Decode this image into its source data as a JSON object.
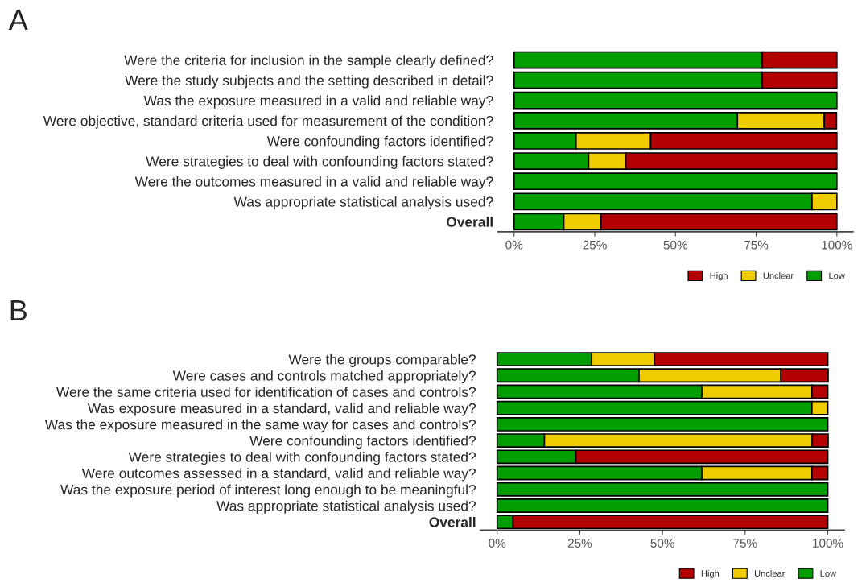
{
  "chart_data": [
    {
      "type": "bar",
      "title": "A",
      "orientation": "horizontal",
      "stacked": true,
      "categories": [
        "Were the criteria for inclusion in the sample clearly defined?",
        "Were the study subjects and the setting described in detail?",
        "Was the exposure measured in a valid and reliable way?",
        "Were objective, standard criteria used for measurement of the condition?",
        "Were confounding factors identified?",
        "Were strategies to deal with confounding factors stated?",
        "Were the outcomes measured in a valid and reliable way?",
        "Was appropriate statistical analysis used?",
        "Overall"
      ],
      "series": [
        {
          "name": "Low",
          "color": "#009e00",
          "values": [
            76.9,
            76.9,
            100,
            69.2,
            19.2,
            23.1,
            100,
            92.3,
            15.4
          ]
        },
        {
          "name": "Unclear",
          "color": "#eecc00",
          "values": [
            null,
            null,
            null,
            26.9,
            23.1,
            11.5,
            null,
            7.7,
            11.5
          ]
        },
        {
          "name": "High",
          "color": "#b30000",
          "values": [
            23.1,
            23.1,
            null,
            3.8,
            57.7,
            65.4,
            null,
            null,
            73.1
          ]
        }
      ],
      "xlim": [
        -5,
        105
      ],
      "xticks": [
        {
          "value": 0,
          "label": "0%"
        },
        {
          "value": 25,
          "label": "25%"
        },
        {
          "value": 50,
          "label": "50%"
        },
        {
          "value": 75,
          "label": "75%"
        },
        {
          "value": 100,
          "label": "100%"
        }
      ],
      "grid": false,
      "legend": "bottom"
    },
    {
      "type": "bar",
      "title": "B",
      "orientation": "horizontal",
      "stacked": true,
      "categories": [
        "Were the groups comparable?",
        "Were cases and controls matched appropriately?",
        "Were the same criteria used for identification of cases and controls?",
        "Was exposure measured in a standard, valid and reliable way?",
        "Was the exposure measured in the same way for cases and controls?",
        "Were confounding factors identified?",
        "Were strategies to deal with confounding factors stated?",
        "Were outcomes assessed in a standard, valid and reliable way?",
        "Was the exposure period of interest long enough to be meaningful?",
        "Was appropriate statistical analysis used?",
        "Overall"
      ],
      "series": [
        {
          "name": "Low",
          "color": "#009e00",
          "values": [
            28.6,
            42.9,
            61.9,
            95.2,
            100,
            14.3,
            23.8,
            61.9,
            100,
            100,
            4.8
          ]
        },
        {
          "name": "Unclear",
          "color": "#eecc00",
          "values": [
            19.0,
            42.9,
            33.3,
            4.8,
            null,
            81.0,
            null,
            33.3,
            null,
            null,
            null
          ]
        },
        {
          "name": "High",
          "color": "#b30000",
          "values": [
            52.4,
            14.3,
            4.8,
            null,
            null,
            4.8,
            76.2,
            4.8,
            null,
            null,
            95.2
          ]
        }
      ],
      "xlim": [
        -5,
        105
      ],
      "xticks": [
        {
          "value": 0,
          "label": "0%"
        },
        {
          "value": 25,
          "label": "25%"
        },
        {
          "value": 50,
          "label": "50%"
        },
        {
          "value": 75,
          "label": "75%"
        },
        {
          "value": 100,
          "label": "100%"
        }
      ],
      "grid": false,
      "legend": "bottom"
    }
  ]
}
